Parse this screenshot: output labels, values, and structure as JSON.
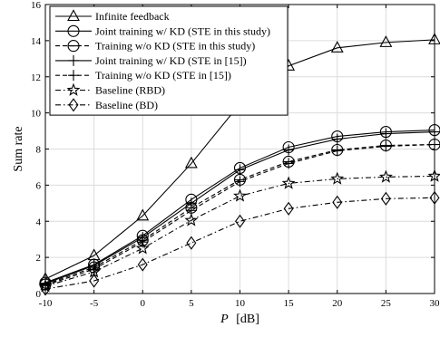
{
  "chart_data": {
    "type": "line",
    "x": [
      -10,
      -5,
      0,
      5,
      10,
      15,
      20,
      25,
      30
    ],
    "xlabel_italic": "P",
    "xlabel_unit": "[dB]",
    "ylabel": "Sum rate",
    "xlim": [
      -10,
      30
    ],
    "ylim": [
      0,
      16
    ],
    "xticks": [
      -10,
      -5,
      0,
      5,
      10,
      15,
      20,
      25,
      30
    ],
    "yticks": [
      0,
      2,
      4,
      6,
      8,
      10,
      12,
      14,
      16
    ],
    "grid": true,
    "legend_position": "top-left",
    "series": [
      {
        "name": "Infinite feedback",
        "marker": "triangle",
        "dash": "solid",
        "values": [
          0.8,
          2.1,
          4.3,
          7.2,
          10.5,
          12.6,
          13.6,
          13.9,
          14.05
        ]
      },
      {
        "name": "Joint training w/ KD (STE in this study)",
        "marker": "circle",
        "dash": "solid",
        "values": [
          0.6,
          1.6,
          3.2,
          5.2,
          6.95,
          8.1,
          8.7,
          8.95,
          9.05
        ]
      },
      {
        "name": "Training w/o KD (STE in this study)",
        "marker": "circle-minus",
        "dash": "dashed",
        "values": [
          0.5,
          1.45,
          2.95,
          4.75,
          6.3,
          7.3,
          7.95,
          8.2,
          8.25
        ]
      },
      {
        "name": "Joint training w/ KD (STE in [15])",
        "marker": "plus",
        "dash": "solid",
        "values": [
          0.55,
          1.55,
          3.1,
          5.0,
          6.85,
          7.95,
          8.55,
          8.85,
          8.95
        ]
      },
      {
        "name": "Training w/o KD (STE in [15])",
        "marker": "plus",
        "dash": "dashed",
        "values": [
          0.45,
          1.35,
          2.85,
          4.6,
          6.2,
          7.2,
          7.9,
          8.15,
          8.25
        ]
      },
      {
        "name": "Baseline (RBD)",
        "marker": "star",
        "dash": "dashdot",
        "values": [
          0.4,
          1.2,
          2.5,
          4.05,
          5.4,
          6.1,
          6.35,
          6.45,
          6.5
        ]
      },
      {
        "name": "Baseline (BD)",
        "marker": "diamond",
        "dash": "dashdot",
        "values": [
          0.25,
          0.7,
          1.6,
          2.8,
          4.0,
          4.7,
          5.05,
          5.25,
          5.3
        ]
      }
    ],
    "colors": {
      "line": "#000000",
      "grid": "#dcdcdc",
      "background": "#ffffff"
    }
  }
}
